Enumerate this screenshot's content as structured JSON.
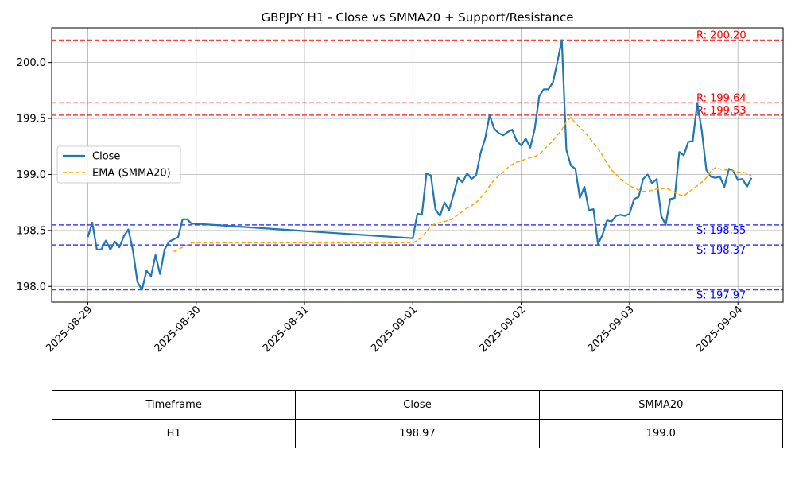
{
  "chart_data": {
    "type": "line",
    "title": "GBPJPY H1 - Close vs SMMA20 + Support/Resistance",
    "xlabel": "",
    "ylabel": "",
    "xlim": [
      "2025-08-28 16:00",
      "2025-09-04 10:00"
    ],
    "ylim": [
      197.86,
      200.31
    ],
    "x_ticks": [
      "2025-08-29",
      "2025-08-30",
      "2025-08-31",
      "2025-09-01",
      "2025-09-02",
      "2025-09-03",
      "2025-09-04"
    ],
    "y_ticks": [
      "198.0",
      "198.5",
      "199.0",
      "199.5",
      "200.0"
    ],
    "grid": true,
    "legend": {
      "position": "center-left",
      "entries": [
        "Close",
        "EMA (SMMA20)"
      ]
    },
    "series": [
      {
        "name": "Close",
        "color": "#1f77b4",
        "style": "solid",
        "x": [
          "2025-08-29 00:00",
          "2025-08-29 01:00",
          "2025-08-29 02:00",
          "2025-08-29 03:00",
          "2025-08-29 04:00",
          "2025-08-29 05:00",
          "2025-08-29 06:00",
          "2025-08-29 07:00",
          "2025-08-29 08:00",
          "2025-08-29 09:00",
          "2025-08-29 10:00",
          "2025-08-29 11:00",
          "2025-08-29 12:00",
          "2025-08-29 13:00",
          "2025-08-29 14:00",
          "2025-08-29 15:00",
          "2025-08-29 16:00",
          "2025-08-29 17:00",
          "2025-08-29 18:00",
          "2025-08-29 19:00",
          "2025-08-29 20:00",
          "2025-08-29 21:00",
          "2025-08-29 22:00",
          "2025-08-29 23:00",
          "2025-08-30 00:00",
          "2025-09-01 00:00",
          "2025-09-01 01:00",
          "2025-09-01 02:00",
          "2025-09-01 03:00",
          "2025-09-01 04:00",
          "2025-09-01 05:00",
          "2025-09-01 06:00",
          "2025-09-01 07:00",
          "2025-09-01 08:00",
          "2025-09-01 09:00",
          "2025-09-01 10:00",
          "2025-09-01 11:00",
          "2025-09-01 12:00",
          "2025-09-01 13:00",
          "2025-09-01 14:00",
          "2025-09-01 15:00",
          "2025-09-01 16:00",
          "2025-09-01 17:00",
          "2025-09-01 18:00",
          "2025-09-01 19:00",
          "2025-09-01 20:00",
          "2025-09-01 21:00",
          "2025-09-01 22:00",
          "2025-09-01 23:00",
          "2025-09-02 00:00",
          "2025-09-02 01:00",
          "2025-09-02 02:00",
          "2025-09-02 03:00",
          "2025-09-02 04:00",
          "2025-09-02 05:00",
          "2025-09-02 06:00",
          "2025-09-02 07:00",
          "2025-09-02 08:00",
          "2025-09-02 09:00",
          "2025-09-02 10:00",
          "2025-09-02 11:00",
          "2025-09-02 12:00",
          "2025-09-02 13:00",
          "2025-09-02 14:00",
          "2025-09-02 15:00",
          "2025-09-02 16:00",
          "2025-09-02 17:00",
          "2025-09-02 18:00",
          "2025-09-02 19:00",
          "2025-09-02 20:00",
          "2025-09-02 21:00",
          "2025-09-02 22:00",
          "2025-09-02 23:00",
          "2025-09-03 00:00",
          "2025-09-03 01:00",
          "2025-09-03 02:00",
          "2025-09-03 03:00",
          "2025-09-03 04:00",
          "2025-09-03 05:00",
          "2025-09-03 06:00",
          "2025-09-03 07:00",
          "2025-09-03 08:00",
          "2025-09-03 09:00",
          "2025-09-03 10:00",
          "2025-09-03 11:00",
          "2025-09-03 12:00",
          "2025-09-03 13:00",
          "2025-09-03 14:00",
          "2025-09-03 15:00",
          "2025-09-03 16:00",
          "2025-09-03 17:00",
          "2025-09-03 18:00",
          "2025-09-03 19:00",
          "2025-09-03 20:00",
          "2025-09-03 21:00",
          "2025-09-03 22:00",
          "2025-09-03 23:00",
          "2025-09-04 00:00",
          "2025-09-04 01:00",
          "2025-09-04 02:00",
          "2025-09-04 03:00"
        ],
        "y": [
          198.44,
          198.57,
          198.33,
          198.33,
          198.41,
          198.33,
          198.4,
          198.35,
          198.45,
          198.51,
          198.32,
          198.04,
          197.97,
          198.14,
          198.09,
          198.28,
          198.11,
          198.33,
          198.4,
          198.42,
          198.44,
          198.6,
          198.6,
          198.56,
          198.56,
          198.43,
          198.65,
          198.64,
          199.01,
          198.99,
          198.69,
          198.63,
          198.75,
          198.68,
          198.82,
          198.97,
          198.93,
          199.01,
          198.96,
          198.99,
          199.19,
          199.32,
          199.53,
          199.41,
          199.37,
          199.35,
          199.38,
          199.4,
          199.3,
          199.26,
          199.32,
          199.24,
          199.41,
          199.7,
          199.76,
          199.76,
          199.82,
          200.0,
          200.2,
          199.22,
          199.08,
          199.05,
          198.79,
          198.89,
          198.68,
          198.69,
          198.38,
          198.46,
          198.59,
          198.58,
          198.63,
          198.64,
          198.63,
          198.65,
          198.78,
          198.8,
          198.96,
          199.0,
          198.92,
          198.96,
          198.63,
          198.55,
          198.78,
          198.79,
          199.2,
          199.17,
          199.29,
          199.3,
          199.64,
          199.39,
          199.04,
          198.98,
          198.97,
          198.98,
          198.89,
          199.05,
          199.03,
          198.95,
          198.96,
          198.89,
          198.97
        ]
      },
      {
        "name": "EMA (SMMA20)",
        "color": "#ffa500",
        "style": "dashed",
        "x": [
          "2025-08-29 19:00",
          "2025-08-29 20:00",
          "2025-08-29 21:00",
          "2025-08-29 22:00",
          "2025-08-29 23:00",
          "2025-08-30 00:00",
          "2025-09-01 00:00",
          "2025-09-01 01:00",
          "2025-09-01 02:00",
          "2025-09-01 03:00",
          "2025-09-01 04:00",
          "2025-09-01 05:00",
          "2025-09-01 06:00",
          "2025-09-01 07:00",
          "2025-09-01 08:00",
          "2025-09-01 09:00",
          "2025-09-01 10:00",
          "2025-09-01 11:00",
          "2025-09-01 12:00",
          "2025-09-01 13:00",
          "2025-09-01 14:00",
          "2025-09-01 15:00",
          "2025-09-01 16:00",
          "2025-09-01 17:00",
          "2025-09-01 18:00",
          "2025-09-01 19:00",
          "2025-09-01 20:00",
          "2025-09-01 21:00",
          "2025-09-01 22:00",
          "2025-09-01 23:00",
          "2025-09-02 00:00",
          "2025-09-02 01:00",
          "2025-09-02 02:00",
          "2025-09-02 03:00",
          "2025-09-02 04:00",
          "2025-09-02 05:00",
          "2025-09-02 06:00",
          "2025-09-02 07:00",
          "2025-09-02 08:00",
          "2025-09-02 09:00",
          "2025-09-02 10:00",
          "2025-09-02 11:00",
          "2025-09-02 12:00",
          "2025-09-02 13:00",
          "2025-09-02 14:00",
          "2025-09-02 15:00",
          "2025-09-02 16:00",
          "2025-09-02 17:00",
          "2025-09-02 18:00",
          "2025-09-02 19:00",
          "2025-09-02 20:00",
          "2025-09-02 21:00",
          "2025-09-02 22:00",
          "2025-09-02 23:00",
          "2025-09-03 00:00",
          "2025-09-03 01:00",
          "2025-09-03 02:00",
          "2025-09-03 03:00",
          "2025-09-03 04:00",
          "2025-09-03 05:00",
          "2025-09-03 06:00",
          "2025-09-03 07:00",
          "2025-09-03 08:00",
          "2025-09-03 09:00",
          "2025-09-03 10:00",
          "2025-09-03 11:00",
          "2025-09-03 12:00",
          "2025-09-03 13:00",
          "2025-09-03 14:00",
          "2025-09-03 15:00",
          "2025-09-03 16:00",
          "2025-09-03 17:00",
          "2025-09-03 18:00",
          "2025-09-03 19:00",
          "2025-09-03 20:00",
          "2025-09-03 21:00",
          "2025-09-03 22:00",
          "2025-09-03 23:00",
          "2025-09-04 00:00",
          "2025-09-04 01:00",
          "2025-09-04 02:00",
          "2025-09-04 03:00"
        ],
        "y": [
          198.31,
          198.33,
          198.35,
          198.37,
          198.39,
          198.39,
          198.39,
          198.41,
          198.44,
          198.49,
          198.54,
          198.56,
          198.57,
          198.58,
          198.59,
          198.61,
          198.64,
          198.67,
          198.7,
          198.72,
          198.75,
          198.79,
          198.84,
          198.9,
          198.95,
          198.99,
          199.02,
          199.06,
          199.09,
          199.11,
          199.12,
          199.14,
          199.15,
          199.16,
          199.18,
          199.22,
          199.26,
          199.3,
          199.35,
          199.4,
          199.47,
          199.51,
          199.46,
          199.42,
          199.38,
          199.33,
          199.28,
          199.23,
          199.17,
          199.1,
          199.04,
          199.0,
          198.96,
          198.93,
          198.9,
          198.88,
          198.86,
          198.85,
          198.85,
          198.86,
          198.87,
          198.87,
          198.88,
          198.86,
          198.84,
          198.82,
          198.81,
          198.84,
          198.87,
          198.9,
          198.93,
          198.97,
          199.03,
          199.06,
          199.05,
          199.04,
          199.04,
          199.03,
          199.02,
          199.02,
          199.01,
          198.99
        ]
      }
    ],
    "hlines": [
      {
        "kind": "resistance",
        "value": 200.2,
        "label": "R: 200.20",
        "color": "#ff0000"
      },
      {
        "kind": "resistance",
        "value": 199.64,
        "label": "R: 199.64",
        "color": "#ff0000"
      },
      {
        "kind": "resistance",
        "value": 199.53,
        "label": "R: 199.53",
        "color": "#ff0000"
      },
      {
        "kind": "support",
        "value": 198.55,
        "label": "S: 198.55",
        "color": "#0000ff"
      },
      {
        "kind": "support",
        "value": 198.37,
        "label": "S: 198.37",
        "color": "#0000ff"
      },
      {
        "kind": "support",
        "value": 197.97,
        "label": "S: 197.97",
        "color": "#0000ff"
      }
    ]
  },
  "table": {
    "headers": [
      "Timeframe",
      "Close",
      "SMMA20"
    ],
    "rows": [
      [
        "H1",
        "198.97",
        "199.0"
      ]
    ]
  }
}
